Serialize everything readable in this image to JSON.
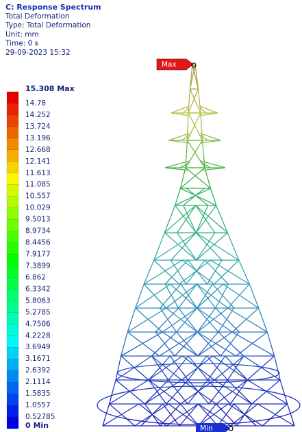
{
  "header": {
    "title": "C: Response Spectrum",
    "lines": [
      "Total Deformation",
      "Type: Total Deformation",
      "Unit: mm",
      "Time: 0 s",
      "29-09-2023 15:32"
    ]
  },
  "legend": {
    "labels": [
      "15.308 Max",
      "14.78",
      "14.252",
      "13.724",
      "13.196",
      "12.668",
      "12.141",
      "11.613",
      "11.085",
      "10.557",
      "10.029",
      "9.5013",
      "8.9734",
      "8.4456",
      "7.9177",
      "7.3899",
      "6.862",
      "6.3342",
      "5.8063",
      "5.2785",
      "4.7506",
      "4.2228",
      "3.6949",
      "3.1671",
      "2.6392",
      "2.1114",
      "1.5835",
      "1.0557",
      "0.52785",
      "0 Min"
    ]
  },
  "markers": {
    "max": "Max",
    "min": "Min"
  }
}
